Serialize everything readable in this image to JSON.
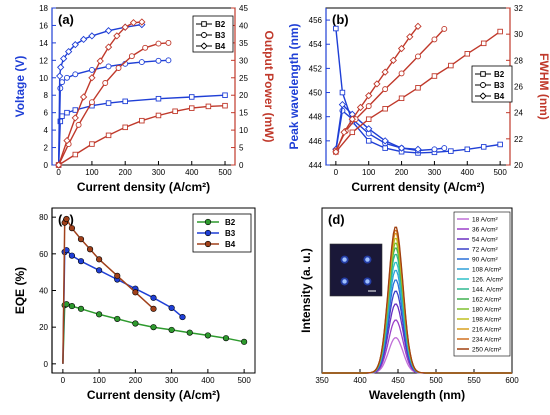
{
  "figure": {
    "panels": [
      "(a)",
      "(b)",
      "(c)",
      "(d)"
    ]
  },
  "colors": {
    "blue": "#1f3fd6",
    "red": "#c0392b",
    "green": "#2e9a2e",
    "brown": "#a0401a"
  },
  "chart_data": [
    {
      "panel": "(a)",
      "type": "line",
      "xlabel": "Current density (A/cm²)",
      "ylabel": "Voltage (V)",
      "y2label": "Output Power (mW)",
      "xlim": [
        -20,
        530
      ],
      "ylim": [
        0,
        18
      ],
      "y2lim": [
        0,
        45
      ],
      "xticks": [
        0,
        100,
        200,
        300,
        400,
        500
      ],
      "yticks": [
        0,
        2,
        4,
        6,
        8,
        10,
        12,
        14,
        16,
        18
      ],
      "y2ticks": [
        0,
        5,
        10,
        15,
        20,
        25,
        30,
        35,
        40,
        45
      ],
      "legend": [
        "B2",
        "B3",
        "B4"
      ],
      "legend_position": "top-right",
      "series": [
        {
          "name": "B2",
          "axis": "left",
          "x": [
            0,
            5,
            10,
            25,
            50,
            100,
            150,
            200,
            300,
            400,
            500
          ],
          "y": [
            0,
            5.0,
            5.6,
            6.0,
            6.3,
            6.8,
            7.1,
            7.3,
            7.6,
            7.8,
            8.0
          ]
        },
        {
          "name": "B3",
          "axis": "left",
          "x": [
            0,
            5,
            10,
            25,
            50,
            100,
            150,
            200,
            250,
            300,
            330
          ],
          "y": [
            0,
            8.8,
            9.5,
            10.0,
            10.4,
            10.9,
            11.3,
            11.6,
            11.8,
            11.95,
            12.0
          ]
        },
        {
          "name": "B4",
          "axis": "left",
          "x": [
            0,
            3,
            6,
            15,
            30,
            50,
            75,
            100,
            150,
            200,
            250
          ],
          "y": [
            0,
            10.2,
            11.2,
            12.2,
            13.0,
            13.8,
            14.4,
            14.8,
            15.4,
            15.8,
            16.1
          ]
        },
        {
          "name": "B2",
          "axis": "right",
          "x": [
            0,
            50,
            100,
            150,
            200,
            250,
            300,
            350,
            400,
            450,
            500
          ],
          "y": [
            0,
            3.0,
            6.0,
            8.5,
            10.8,
            12.7,
            14.2,
            15.4,
            16.3,
            16.8,
            17.0
          ]
        },
        {
          "name": "B3",
          "axis": "right",
          "x": [
            0,
            30,
            60,
            100,
            140,
            180,
            220,
            260,
            300,
            330
          ],
          "y": [
            0,
            6.0,
            11.5,
            18.0,
            23.5,
            27.8,
            31.2,
            33.6,
            34.8,
            35.0
          ]
        },
        {
          "name": "B4",
          "axis": "right",
          "x": [
            0,
            25,
            50,
            75,
            100,
            125,
            150,
            175,
            200,
            225,
            250
          ],
          "y": [
            0,
            7.0,
            13.5,
            19.5,
            25.0,
            29.8,
            33.8,
            37.0,
            39.5,
            40.8,
            41.0
          ]
        }
      ]
    },
    {
      "panel": "(b)",
      "type": "line",
      "xlabel": "Current density (A/cm²)",
      "ylabel": "Peak wavelength (nm)",
      "y2label": "FWHM (nm)",
      "xlim": [
        -30,
        530
      ],
      "ylim": [
        444,
        457
      ],
      "y2lim": [
        20,
        32
      ],
      "xticks": [
        0,
        100,
        200,
        300,
        400,
        500
      ],
      "yticks": [
        444,
        446,
        448,
        450,
        452,
        454,
        456
      ],
      "y2ticks": [
        20,
        22,
        24,
        26,
        28,
        30,
        32
      ],
      "legend": [
        "B2",
        "B3",
        "B4"
      ],
      "legend_position": "middle-right",
      "series": [
        {
          "name": "B2",
          "axis": "left",
          "x": [
            0,
            20,
            50,
            100,
            150,
            200,
            250,
            300,
            350,
            400,
            450,
            500
          ],
          "y": [
            455.3,
            450.0,
            447.6,
            446.0,
            445.4,
            445.1,
            445.0,
            445.05,
            445.15,
            445.3,
            445.5,
            445.7
          ]
        },
        {
          "name": "B3",
          "axis": "left",
          "x": [
            0,
            20,
            50,
            100,
            150,
            200,
            250,
            300,
            330
          ],
          "y": [
            445.2,
            448.5,
            447.8,
            446.6,
            445.8,
            445.4,
            445.2,
            445.3,
            445.4
          ]
        },
        {
          "name": "B4",
          "axis": "left",
          "x": [
            0,
            20,
            50,
            100,
            150,
            200,
            250
          ],
          "y": [
            445.3,
            449.0,
            448.2,
            447.0,
            446.0,
            445.4,
            445.3
          ]
        },
        {
          "name": "B2",
          "axis": "right",
          "x": [
            0,
            50,
            100,
            150,
            200,
            250,
            300,
            350,
            400,
            450,
            500
          ],
          "y": [
            21.0,
            22.5,
            23.5,
            24.3,
            25.1,
            25.9,
            26.8,
            27.6,
            28.5,
            29.3,
            30.2
          ]
        },
        {
          "name": "B3",
          "axis": "right",
          "x": [
            0,
            30,
            60,
            100,
            150,
            200,
            250,
            300,
            330
          ],
          "y": [
            21.1,
            22.6,
            23.5,
            24.5,
            25.8,
            27.0,
            28.3,
            29.6,
            30.4
          ]
        },
        {
          "name": "B4",
          "axis": "right",
          "x": [
            0,
            25,
            50,
            75,
            100,
            125,
            150,
            175,
            200,
            225,
            250
          ],
          "y": [
            21.0,
            22.5,
            23.5,
            24.4,
            25.3,
            26.2,
            27.1,
            28.0,
            28.9,
            29.8,
            30.6
          ]
        }
      ]
    },
    {
      "panel": "(c)",
      "type": "line",
      "xlabel": "Current density (A/cm²)",
      "ylabel": "EQE (%)",
      "xlim": [
        -30,
        530
      ],
      "ylim": [
        -5,
        85
      ],
      "xticks": [
        0,
        100,
        200,
        300,
        400,
        500
      ],
      "yticks": [
        0,
        20,
        40,
        60,
        80
      ],
      "legend": [
        "B2",
        "B3",
        "B4"
      ],
      "legend_position": "top-right",
      "series": [
        {
          "name": "B2",
          "x": [
            0,
            5,
            10,
            25,
            50,
            100,
            150,
            200,
            250,
            300,
            350,
            400,
            450,
            500
          ],
          "y": [
            0,
            32.0,
            32.5,
            31.5,
            30.0,
            27.0,
            24.5,
            22.0,
            20.0,
            18.5,
            17.0,
            15.5,
            14.0,
            12.0
          ]
        },
        {
          "name": "B3",
          "x": [
            0,
            5,
            10,
            25,
            50,
            100,
            150,
            200,
            250,
            300,
            330
          ],
          "y": [
            0,
            61.0,
            62.0,
            59.0,
            56.0,
            51.0,
            46.0,
            41.0,
            36.0,
            30.5,
            25.5
          ]
        },
        {
          "name": "B4",
          "x": [
            0,
            5,
            10,
            25,
            50,
            75,
            100,
            150,
            200,
            250
          ],
          "y": [
            0,
            77.0,
            79.0,
            74.0,
            68.0,
            62.5,
            57.0,
            48.0,
            39.0,
            30.0
          ]
        }
      ]
    },
    {
      "panel": "(d)",
      "type": "line",
      "xlabel": "Wavelength (nm)",
      "ylabel": "Intensity (a. u.)",
      "xlim": [
        350,
        600
      ],
      "xticks": [
        350,
        400,
        450,
        500,
        550,
        600
      ],
      "peak_wavelength": 447,
      "legend_position": "top-right",
      "series": [
        {
          "name": "18 A/cm²",
          "color": "#c070d8",
          "peak": 0.22
        },
        {
          "name": "36 A/cm²",
          "color": "#9a40c8",
          "peak": 0.33
        },
        {
          "name": "54 A/cm²",
          "color": "#6a30c0",
          "peak": 0.43
        },
        {
          "name": "72 A/cm²",
          "color": "#3a40c8",
          "peak": 0.51
        },
        {
          "name": "90 A/cm²",
          "color": "#2a70d8",
          "peak": 0.58
        },
        {
          "name": "108 A/cm²",
          "color": "#30a0d8",
          "peak": 0.64
        },
        {
          "name": "126. A/cm²",
          "color": "#30c0c8",
          "peak": 0.69
        },
        {
          "name": "144. A/cm²",
          "color": "#30b890",
          "peak": 0.74
        },
        {
          "name": "162 A/cm²",
          "color": "#40b050",
          "peak": 0.78
        },
        {
          "name": "180 A/cm²",
          "color": "#80c030",
          "peak": 0.81
        },
        {
          "name": "198 A/cm²",
          "color": "#c0c020",
          "peak": 0.84
        },
        {
          "name": "216 A/cm²",
          "color": "#d8a020",
          "peak": 0.87
        },
        {
          "name": "234 A/cm²",
          "color": "#d07020",
          "peak": 0.89
        },
        {
          "name": "250 A/cm²",
          "color": "#a04010",
          "peak": 0.91
        }
      ],
      "inset": "emission-image"
    }
  ]
}
